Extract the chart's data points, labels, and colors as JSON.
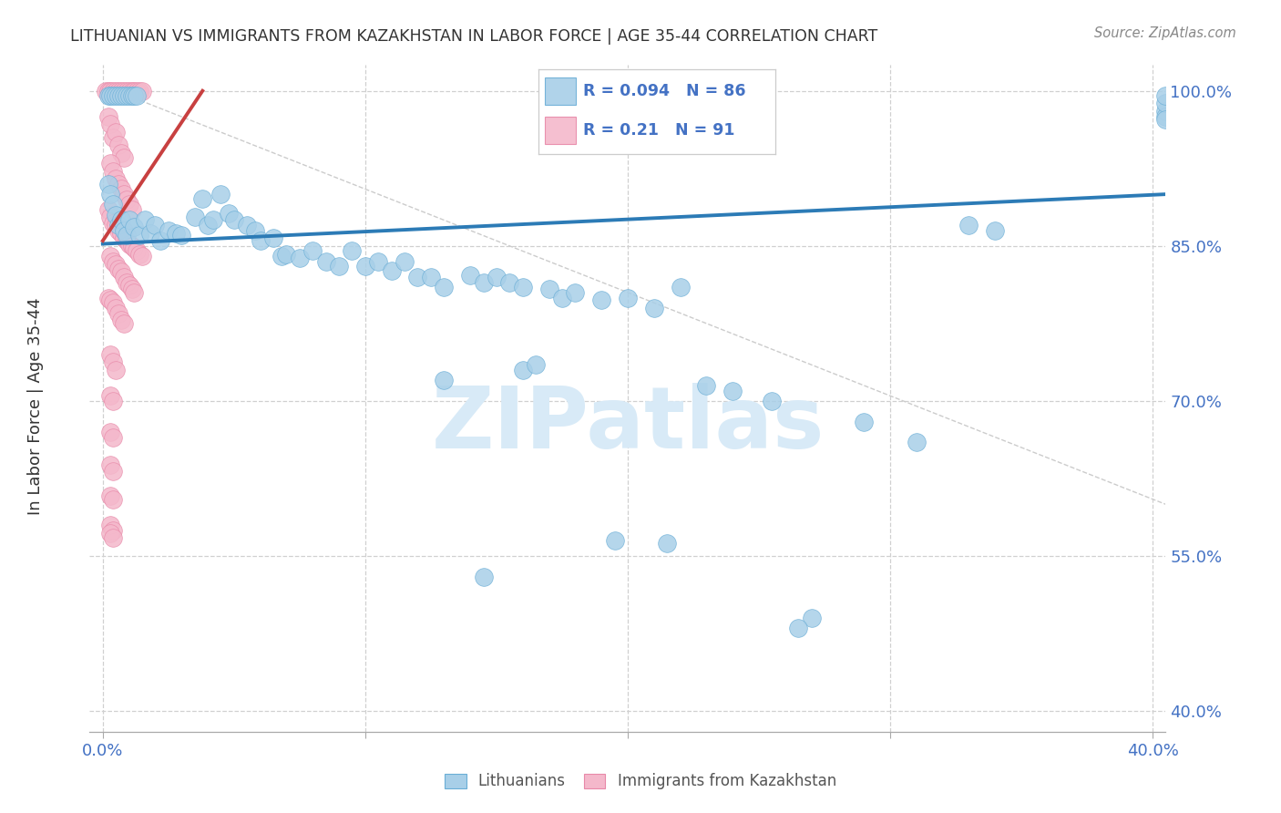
{
  "title": "LITHUANIAN VS IMMIGRANTS FROM KAZAKHSTAN IN LABOR FORCE | AGE 35-44 CORRELATION CHART",
  "source": "Source: ZipAtlas.com",
  "ylabel": "In Labor Force | Age 35-44",
  "xlim": [
    -0.005,
    0.405
  ],
  "ylim": [
    0.38,
    1.025
  ],
  "yticks": [
    1.0,
    0.85,
    0.7,
    0.55,
    0.4
  ],
  "ytick_labels": [
    "100.0%",
    "85.0%",
    "70.0%",
    "55.0%",
    "40.0%"
  ],
  "xticks": [
    0.0,
    0.1,
    0.2,
    0.3,
    0.4
  ],
  "xtick_labels": [
    "0.0%",
    "",
    "",
    "",
    "40.0%"
  ],
  "grid_color": "#d0d0d0",
  "background_color": "#ffffff",
  "blue_color": "#a8cfe8",
  "pink_color": "#f4b8cb",
  "blue_edge_color": "#6aaed6",
  "pink_edge_color": "#e888a8",
  "blue_line_color": "#2c7bb6",
  "pink_line_color": "#c84040",
  "axis_label_color": "#4472c4",
  "text_color": "#333333",
  "R_blue": 0.094,
  "N_blue": 86,
  "R_pink": 0.21,
  "N_pink": 91,
  "watermark": "ZIPatlas",
  "watermark_color": "#d8eaf7",
  "blue_line_x": [
    0.0,
    0.405
  ],
  "blue_line_y": [
    0.852,
    0.9
  ],
  "pink_line_x": [
    0.0,
    0.038
  ],
  "pink_line_y": [
    0.855,
    1.0
  ],
  "diag_line_x": [
    0.0,
    0.405
  ],
  "diag_line_y": [
    1.005,
    0.6
  ]
}
